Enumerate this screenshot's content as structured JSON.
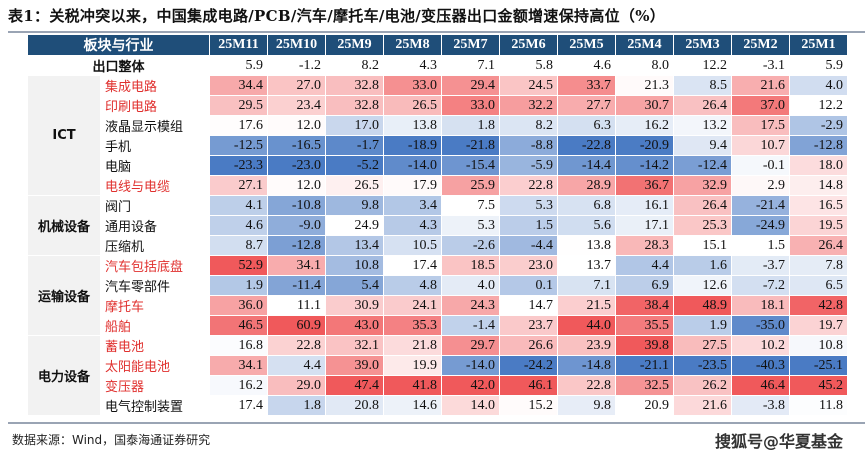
{
  "title": "表1：关税冲突以来，中国集成电路/PCB/汽车/摩托车/电池/变压器出口金额增速保持高位（%）",
  "chart_data": {
    "type": "table",
    "header_label": "板块与行业",
    "columns": [
      "25M11",
      "25M10",
      "25M9",
      "25M8",
      "25M7",
      "25M6",
      "25M5",
      "25M4",
      "25M3",
      "25M2",
      "25M1"
    ],
    "total": {
      "label": "出口整体",
      "values": [
        5.9,
        -1.2,
        8.2,
        4.3,
        7.1,
        5.8,
        4.6,
        8.0,
        12.2,
        -3.1,
        5.9
      ]
    },
    "groups": [
      {
        "name": "ICT",
        "rows": [
          {
            "name": "集成电路",
            "highlight": true,
            "values": [
              34.4,
              27.0,
              32.8,
              33.0,
              29.4,
              24.5,
              33.7,
              21.3,
              8.5,
              21.6,
              4.0
            ]
          },
          {
            "name": "印刷电路",
            "highlight": true,
            "values": [
              29.5,
              23.4,
              32.8,
              26.5,
              33.0,
              32.2,
              27.7,
              30.7,
              26.4,
              37.0,
              12.2
            ]
          },
          {
            "name": "液晶显示模组",
            "highlight": false,
            "values": [
              17.6,
              12.0,
              17.0,
              13.8,
              1.8,
              8.2,
              6.3,
              16.2,
              13.2,
              17.5,
              -2.9
            ]
          },
          {
            "name": "手机",
            "highlight": false,
            "values": [
              -12.5,
              -16.5,
              -1.7,
              -18.9,
              -21.8,
              -8.8,
              -22.8,
              -20.9,
              9.4,
              10.7,
              -12.8
            ]
          },
          {
            "name": "电脑",
            "highlight": false,
            "values": [
              -23.3,
              -23.0,
              -5.2,
              -14.0,
              -15.4,
              -5.9,
              -14.4,
              -14.2,
              -12.4,
              -0.1,
              18.0
            ]
          },
          {
            "name": "电线与电缆",
            "highlight": true,
            "values": [
              27.1,
              12.0,
              26.5,
              17.9,
              25.9,
              22.8,
              28.9,
              36.7,
              32.9,
              2.9,
              14.8
            ]
          }
        ]
      },
      {
        "name": "机械设备",
        "rows": [
          {
            "name": "阀门",
            "highlight": false,
            "values": [
              4.1,
              -10.8,
              9.8,
              3.4,
              7.5,
              5.3,
              6.8,
              16.1,
              26.4,
              -21.4,
              16.5
            ]
          },
          {
            "name": "通用设备",
            "highlight": false,
            "values": [
              4.6,
              -9.0,
              24.9,
              4.3,
              5.3,
              1.5,
              5.6,
              17.1,
              25.3,
              -24.9,
              19.5
            ]
          },
          {
            "name": "压缩机",
            "highlight": false,
            "values": [
              8.7,
              -12.8,
              13.4,
              10.5,
              -2.6,
              -4.4,
              13.8,
              28.3,
              15.1,
              1.5,
              26.4
            ]
          }
        ]
      },
      {
        "name": "运输设备",
        "rows": [
          {
            "name": "汽车包括底盘",
            "highlight": true,
            "values": [
              52.9,
              34.1,
              10.8,
              17.4,
              18.5,
              23.0,
              13.7,
              4.4,
              1.6,
              -3.7,
              7.8
            ]
          },
          {
            "name": "汽车零部件",
            "highlight": false,
            "values": [
              1.9,
              -11.4,
              5.4,
              4.8,
              4.0,
              0.1,
              7.1,
              6.9,
              12.6,
              -7.2,
              6.5
            ]
          },
          {
            "name": "摩托车",
            "highlight": true,
            "values": [
              36.0,
              11.1,
              30.9,
              24.1,
              24.3,
              14.7,
              21.5,
              38.4,
              48.9,
              18.1,
              42.8
            ]
          },
          {
            "name": "船舶",
            "highlight": true,
            "values": [
              46.5,
              60.9,
              43.0,
              35.3,
              -1.4,
              23.7,
              44.0,
              35.5,
              1.9,
              -35.0,
              19.7
            ]
          }
        ]
      },
      {
        "name": "电力设备",
        "rows": [
          {
            "name": "蓄电池",
            "highlight": true,
            "values": [
              16.8,
              22.8,
              32.1,
              21.8,
              29.7,
              26.6,
              23.9,
              39.8,
              27.5,
              10.2,
              10.8
            ]
          },
          {
            "name": "太阳能电池",
            "highlight": true,
            "values": [
              34.1,
              4.4,
              39.0,
              19.9,
              -14.0,
              -24.2,
              -14.8,
              -21.1,
              -23.5,
              -40.3,
              -25.1
            ]
          },
          {
            "name": "变压器",
            "highlight": true,
            "values": [
              16.2,
              29.0,
              47.4,
              41.8,
              42.0,
              46.1,
              22.8,
              32.5,
              26.2,
              46.4,
              45.2
            ]
          },
          {
            "name": "电气控制装置",
            "highlight": false,
            "values": [
              17.4,
              1.8,
              20.8,
              14.6,
              14.0,
              15.2,
              9.8,
              20.9,
              21.6,
              -3.8,
              11.8
            ]
          }
        ]
      }
    ],
    "colors": {
      "low": "#4a7bc4",
      "mid": "#ffffff",
      "high": "#f0595b",
      "header": "#1f4e79"
    }
  },
  "source": "数据来源：Wind，国泰海通证券研究",
  "watermark": "搜狐号@华夏基金"
}
